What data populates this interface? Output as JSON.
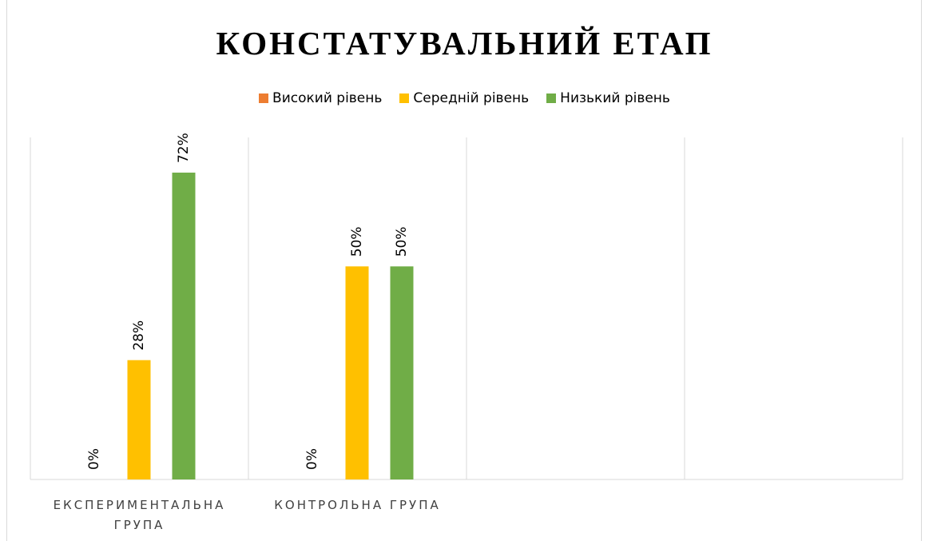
{
  "chart_data": {
    "type": "bar",
    "title": "КОНСТАТУВАЛЬНИЙ ЕТАП",
    "categories": [
      "ЕКСПЕРИМЕНТАЛЬНА ГРУПА",
      "КОНТРОЛЬНА ГРУПА",
      null,
      null
    ],
    "series": [
      {
        "name": "Високий рівень",
        "color": "#ed7d31",
        "values": [
          0,
          0,
          null,
          null
        ],
        "value_labels": [
          "0%",
          "0%",
          null,
          null
        ]
      },
      {
        "name": "Середній рівень",
        "color": "#ffc000",
        "values": [
          28,
          50,
          null,
          null
        ],
        "value_labels": [
          "28%",
          "50%",
          null,
          null
        ]
      },
      {
        "name": "Низький рівень",
        "color": "#70ad47",
        "values": [
          72,
          50,
          null,
          null
        ],
        "value_labels": [
          "72%",
          "50%",
          null,
          null
        ]
      }
    ],
    "legend": "top",
    "grid": true
  }
}
